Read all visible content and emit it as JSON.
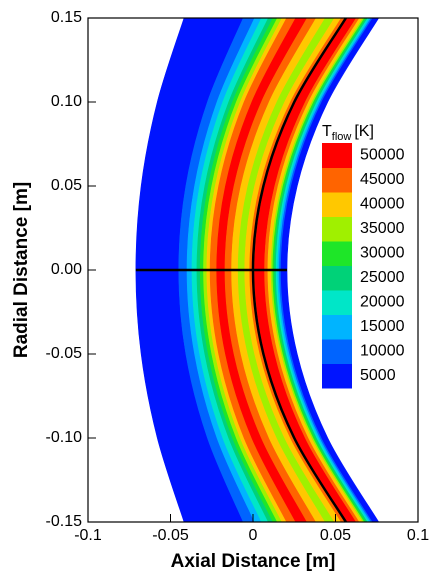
{
  "chart_data": {
    "type": "contour",
    "xlabel": "Axial Distance [m]",
    "ylabel": "Radial Distance [m]",
    "xlim": [
      -0.1,
      0.1
    ],
    "ylim": [
      -0.15,
      0.15
    ],
    "xticks": [
      -0.1,
      -0.05,
      0,
      0.05,
      0.1
    ],
    "yticks": [
      -0.15,
      {
        "value": -0.1,
        "label": "-0.10"
      },
      -0.05,
      {
        "value": 0,
        "label": "0.00"
      },
      0.05,
      {
        "value": 0.1,
        "label": "0.10"
      },
      0.15
    ],
    "colorbar": {
      "title": {
        "main": "T",
        "sub": "flow",
        "unit": "[K]"
      },
      "levels": [
        5000,
        10000,
        15000,
        20000,
        25000,
        30000,
        35000,
        40000,
        45000,
        50000
      ],
      "colors": [
        "#0014ff",
        "#0064ff",
        "#00b4ff",
        "#00e6c8",
        "#00d278",
        "#1ee628",
        "#a0f000",
        "#ffc800",
        "#ff6400",
        "#ff0000"
      ]
    },
    "y": [
      -0.15,
      -0.1,
      -0.05,
      0,
      0.05,
      0.1,
      0.15
    ],
    "left_edge": [
      -0.0418,
      -0.058,
      -0.0678,
      -0.071,
      -0.0678,
      -0.058,
      -0.0418
    ],
    "bands": [
      {
        "value": 5000,
        "x": [
          -0.0059,
          -0.0276,
          -0.0407,
          -0.045,
          -0.0407,
          -0.0276,
          -0.0059
        ]
      },
      {
        "value": 10000,
        "x": [
          0.001,
          -0.0218,
          -0.0354,
          -0.04,
          -0.0354,
          -0.0218,
          0.001
        ]
      },
      {
        "value": 15000,
        "x": [
          0.0052,
          -0.0183,
          -0.0323,
          -0.037,
          -0.0323,
          -0.0183,
          0.0052
        ]
      },
      {
        "value": 20000,
        "x": [
          0.0093,
          -0.0147,
          -0.0292,
          -0.034,
          -0.0292,
          -0.0147,
          0.0093
        ]
      },
      {
        "value": 25000,
        "x": [
          0.0121,
          -0.0124,
          -0.0271,
          -0.032,
          -0.0271,
          -0.0124,
          0.0121
        ]
      },
      {
        "value": 30000,
        "x": [
          0.0148,
          -0.0101,
          -0.025,
          -0.03,
          -0.025,
          -0.0101,
          0.0148
        ]
      },
      {
        "value": 35000,
        "x": [
          0.0176,
          -0.0077,
          -0.0229,
          -0.028,
          -0.0229,
          -0.0077,
          0.0176
        ]
      },
      {
        "value": 40000,
        "x": [
          0.0204,
          -0.0054,
          -0.0208,
          -0.026,
          -0.0208,
          -0.0054,
          0.0204
        ]
      },
      {
        "value": 45000,
        "x": [
          0.0259,
          -0.0007,
          -0.0167,
          -0.022,
          -0.0167,
          -0.0007,
          0.0259
        ]
      },
      {
        "value": 50000,
        "x": [
          0.0328,
          0.0051,
          -0.0115,
          -0.017,
          -0.0115,
          0.0051,
          0.0328
        ]
      },
      {
        "value": 45000,
        "x": [
          0.0383,
          0.0098,
          -0.0073,
          -0.013,
          -0.0073,
          0.0098,
          0.0383
        ]
      },
      {
        "value": 40000,
        "x": [
          0.0438,
          0.0145,
          -0.0031,
          -0.009,
          -0.0031,
          0.0145,
          0.0438
        ]
      },
      {
        "value": 35000,
        "x": [
          0.0494,
          0.0192,
          0.001,
          -0.005,
          0.001,
          0.0192,
          0.0494
        ]
      },
      {
        "value": 40000,
        "x": [
          0.0535,
          0.0227,
          0.0042,
          -0.002,
          0.0042,
          0.0227,
          0.0535
        ]
      },
      {
        "value": 45000,
        "x": [
          0.0566,
          0.0257,
          0.0072,
          0.001,
          0.0072,
          0.0257,
          0.0566
        ]
      },
      {
        "value": 50000,
        "x": [
          0.0626,
          0.0317,
          0.0132,
          0.007,
          0.0132,
          0.0317,
          0.0626
        ]
      },
      {
        "value": 45000,
        "x": [
          0.0646,
          0.0337,
          0.0152,
          0.009,
          0.0152,
          0.0337,
          0.0646
        ]
      },
      {
        "value": 40000,
        "x": [
          0.0666,
          0.0357,
          0.0172,
          0.011,
          0.0172,
          0.0357,
          0.0666
        ]
      },
      {
        "value": 35000,
        "x": [
          0.0676,
          0.0367,
          0.0182,
          0.012,
          0.0182,
          0.0367,
          0.0676
        ]
      },
      {
        "value": 30000,
        "x": [
          0.0686,
          0.0377,
          0.0192,
          0.013,
          0.0192,
          0.0377,
          0.0686
        ]
      },
      {
        "value": 25000,
        "x": [
          0.0696,
          0.0387,
          0.0202,
          0.014,
          0.0202,
          0.0387,
          0.0696
        ]
      },
      {
        "value": 20000,
        "x": [
          0.0706,
          0.0397,
          0.0212,
          0.015,
          0.0212,
          0.0397,
          0.0706
        ]
      },
      {
        "value": 15000,
        "x": [
          0.0716,
          0.0407,
          0.0222,
          0.016,
          0.0222,
          0.0407,
          0.0716
        ]
      },
      {
        "value": 10000,
        "x": [
          0.0726,
          0.0417,
          0.0232,
          0.017,
          0.0232,
          0.0417,
          0.0726
        ]
      },
      {
        "value": 5000,
        "x": [
          0.0762,
          0.0453,
          0.0268,
          0.0206,
          0.0268,
          0.0453,
          0.0762
        ]
      }
    ],
    "lines": [
      {
        "color": "#000000",
        "x": [
          0.0563,
          0.025,
          0.0063,
          0,
          0.0063,
          0.025,
          0.0563
        ],
        "y": [
          -0.15,
          -0.1,
          -0.05,
          0,
          0.05,
          0.1,
          0.15
        ]
      },
      {
        "color": "#000000",
        "x": [
          -0.071,
          0.0206
        ],
        "y": [
          0,
          0
        ]
      }
    ]
  }
}
